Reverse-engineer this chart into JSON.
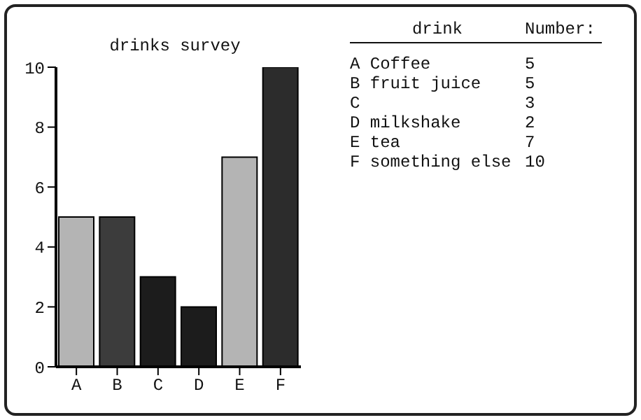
{
  "chart_data": {
    "type": "bar",
    "title": "drinks survey",
    "categories": [
      "A",
      "B",
      "C",
      "D",
      "E",
      "F"
    ],
    "values": [
      5,
      5,
      3,
      2,
      7,
      10
    ],
    "colors": [
      "#b4b4b4",
      "#3c3c3c",
      "#1c1c1c",
      "#1c1c1c",
      "#b4b4b4",
      "#2c2c2c"
    ],
    "ylim": [
      0,
      10
    ],
    "yticks": [
      0,
      2,
      4,
      6,
      8,
      10
    ],
    "annotations": [
      "drink",
      "Number:",
      "A Coffee",
      "5",
      "B fruit juice",
      "5",
      "C",
      "3",
      "D milkshake",
      "2",
      "E tea",
      "7",
      "F something else",
      "10"
    ]
  }
}
